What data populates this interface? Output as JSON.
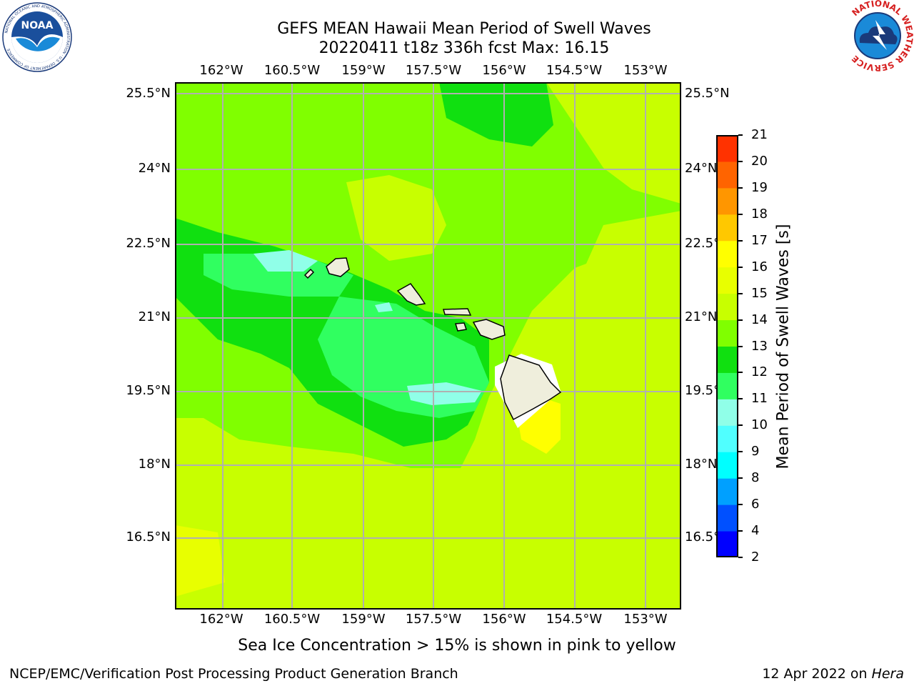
{
  "title": {
    "line1": "GEFS MEAN Hawaii Mean Period of Swell Waves",
    "line2": "20220411 t18z 336h fcst   Max: 16.15"
  },
  "axes": {
    "lon_labels": [
      "162°W",
      "160.5°W",
      "159°W",
      "157.5°W",
      "156°W",
      "154.5°W",
      "153°W"
    ],
    "lat_labels": [
      "25.5°N",
      "24°N",
      "22.5°N",
      "21°N",
      "19.5°N",
      "18°N",
      "16.5°N"
    ]
  },
  "colorbar": {
    "label": "Mean Period of Swell Waves [s]",
    "ticks": [
      "2",
      "4",
      "6",
      "8",
      "9",
      "10",
      "11",
      "12",
      "13",
      "14",
      "15",
      "16",
      "17",
      "18",
      "19",
      "20",
      "21"
    ],
    "colors": [
      "#0000ff",
      "#0050ff",
      "#00a0ff",
      "#00ffff",
      "#50ffff",
      "#90ffe8",
      "#30ff60",
      "#10e010",
      "#80ff00",
      "#c8ff00",
      "#e8ff00",
      "#ffff00",
      "#ffc800",
      "#ff9600",
      "#ff6400",
      "#ff3200",
      "#ff0000"
    ]
  },
  "notes": {
    "sea_ice": "Sea Ice Concentration > 15% is shown in pink to yellow"
  },
  "footer": {
    "left": "NCEP/EMC/Verification Post Processing Product Generation Branch",
    "right_prefix": "12 Apr 2022 on ",
    "right_host": "Hera"
  },
  "logos": {
    "noaa": "NOAA",
    "noaa_ring": "NATIONAL OCEANIC AND ATMOSPHERIC ADMINISTRATION · U.S. DEPARTMENT OF COMMERCE",
    "nws_ring": "NATIONAL WEATHER SERVICE"
  }
}
